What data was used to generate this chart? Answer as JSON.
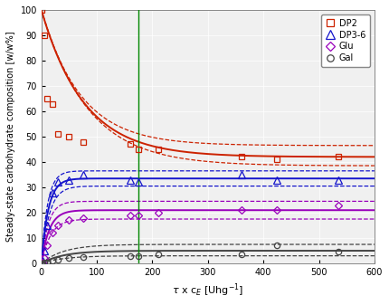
{
  "ylabel": "Steady-state carbohydrate composition [w/w%]",
  "xlim": [
    0,
    600
  ],
  "ylim": [
    0,
    100
  ],
  "xticks": [
    0,
    100,
    200,
    300,
    400,
    500,
    600
  ],
  "yticks": [
    0,
    10,
    20,
    30,
    40,
    50,
    60,
    70,
    80,
    90,
    100
  ],
  "vline_x": 175,
  "vline_color": "#008800",
  "bg_color": "#f0f0f0",
  "series": [
    {
      "name": "DP2",
      "color": "#cc2200",
      "marker": "s",
      "marker_size": 4.5,
      "data_x": [
        1,
        5,
        10,
        20,
        30,
        50,
        75,
        160,
        175,
        210,
        360,
        425,
        535
      ],
      "data_y": [
        100,
        90,
        65,
        63,
        51,
        50,
        48,
        47,
        45,
        45,
        42,
        41,
        42
      ],
      "type": "decay",
      "fit_asymptote": 42.0,
      "fit_decay": 0.013,
      "fit_y0": 100,
      "ci_upper_asymptote": 46.5,
      "ci_upper_y0": 100,
      "ci_upper_decay": 0.014,
      "ci_lower_asymptote": 38.5,
      "ci_lower_y0": 100,
      "ci_lower_decay": 0.012
    },
    {
      "name": "DP3-6",
      "color": "#1515cc",
      "marker": "^",
      "marker_size": 5.5,
      "data_x": [
        2,
        5,
        10,
        20,
        30,
        50,
        75,
        160,
        175,
        360,
        425,
        535
      ],
      "data_y": [
        1,
        5,
        15,
        28,
        32,
        33,
        35,
        33,
        32,
        35,
        33,
        33
      ],
      "type": "rise",
      "fit_asymptote": 33.5,
      "fit_decay": 0.08,
      "ci_upper_asymptote": 36.5,
      "ci_upper_decay": 0.09,
      "ci_lower_asymptote": 30.5,
      "ci_lower_decay": 0.07
    },
    {
      "name": "Glu",
      "color": "#9900bb",
      "marker": "D",
      "marker_size": 4.5,
      "data_x": [
        2,
        5,
        10,
        20,
        30,
        50,
        75,
        160,
        175,
        210,
        360,
        425,
        535
      ],
      "data_y": [
        0.5,
        2,
        7,
        12,
        15,
        17,
        18,
        19,
        19,
        20,
        21,
        21,
        23
      ],
      "type": "rise",
      "fit_asymptote": 21.0,
      "fit_decay": 0.07,
      "ci_upper_asymptote": 24.5,
      "ci_upper_decay": 0.08,
      "ci_lower_asymptote": 17.5,
      "ci_lower_decay": 0.06
    },
    {
      "name": "Gal",
      "color": "#444444",
      "marker": "o",
      "marker_size": 4.5,
      "data_x": [
        2,
        5,
        10,
        20,
        30,
        50,
        75,
        160,
        175,
        210,
        360,
        425,
        535
      ],
      "data_y": [
        0,
        0.2,
        0.5,
        1,
        1.5,
        2,
        2.5,
        3,
        3,
        3.5,
        3.5,
        7,
        4.5
      ],
      "type": "rise",
      "fit_asymptote": 5.0,
      "fit_decay": 0.025,
      "ci_upper_asymptote": 7.5,
      "ci_upper_decay": 0.025,
      "ci_lower_asymptote": 3.0,
      "ci_lower_decay": 0.025
    }
  ]
}
